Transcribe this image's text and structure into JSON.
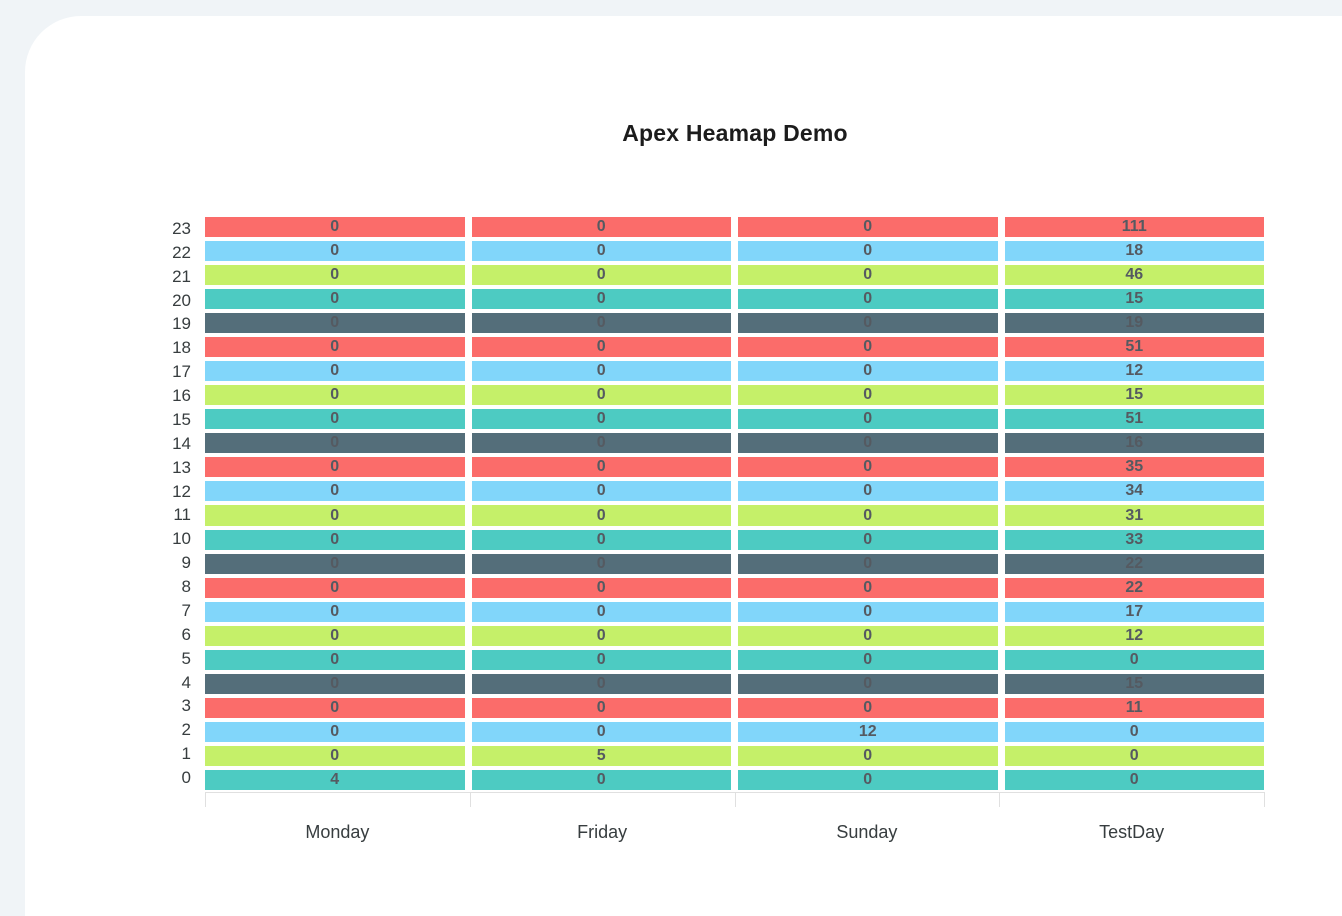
{
  "page": {
    "background_color": "#F0F4F7",
    "card_color": "#FFFFFF"
  },
  "chart_data": {
    "type": "heatmap",
    "title": "Apex Heamap Demo",
    "title_color": "#1C1C1C",
    "x_categories": [
      "Monday",
      "Friday",
      "Sunday",
      "TestDay"
    ],
    "y_categories_top_to_bottom": [
      "23",
      "22",
      "21",
      "20",
      "19",
      "18",
      "17",
      "16",
      "15",
      "14",
      "13",
      "12",
      "11",
      "10",
      "9",
      "8",
      "7",
      "6",
      "5",
      "4",
      "3",
      "2",
      "1",
      "0"
    ],
    "legend_position": "none",
    "grid": "off",
    "palette": {
      "red": "#FB6C6A",
      "blue": "#81D6FA",
      "lime": "#C5F069",
      "teal": "#4DCBC2",
      "slate": "#546E7A"
    },
    "row_color_cycle_top_to_bottom": [
      "red",
      "blue",
      "lime",
      "teal",
      "slate"
    ],
    "rows": [
      {
        "hour": "23",
        "color": "red",
        "values": [
          0,
          0,
          0,
          111
        ]
      },
      {
        "hour": "22",
        "color": "blue",
        "values": [
          0,
          0,
          0,
          18
        ]
      },
      {
        "hour": "21",
        "color": "lime",
        "values": [
          0,
          0,
          0,
          46
        ]
      },
      {
        "hour": "20",
        "color": "teal",
        "values": [
          0,
          0,
          0,
          15
        ]
      },
      {
        "hour": "19",
        "color": "slate",
        "values": [
          0,
          0,
          0,
          19
        ]
      },
      {
        "hour": "18",
        "color": "red",
        "values": [
          0,
          0,
          0,
          51
        ]
      },
      {
        "hour": "17",
        "color": "blue",
        "values": [
          0,
          0,
          0,
          12
        ]
      },
      {
        "hour": "16",
        "color": "lime",
        "values": [
          0,
          0,
          0,
          15
        ]
      },
      {
        "hour": "15",
        "color": "teal",
        "values": [
          0,
          0,
          0,
          51
        ]
      },
      {
        "hour": "14",
        "color": "slate",
        "values": [
          0,
          0,
          0,
          16
        ]
      },
      {
        "hour": "13",
        "color": "red",
        "values": [
          0,
          0,
          0,
          35
        ]
      },
      {
        "hour": "12",
        "color": "blue",
        "values": [
          0,
          0,
          0,
          34
        ]
      },
      {
        "hour": "11",
        "color": "lime",
        "values": [
          0,
          0,
          0,
          31
        ]
      },
      {
        "hour": "10",
        "color": "teal",
        "values": [
          0,
          0,
          0,
          33
        ]
      },
      {
        "hour": "9",
        "color": "slate",
        "values": [
          0,
          0,
          0,
          22
        ]
      },
      {
        "hour": "8",
        "color": "red",
        "values": [
          0,
          0,
          0,
          22
        ]
      },
      {
        "hour": "7",
        "color": "blue",
        "values": [
          0,
          0,
          0,
          17
        ]
      },
      {
        "hour": "6",
        "color": "lime",
        "values": [
          0,
          0,
          0,
          12
        ]
      },
      {
        "hour": "5",
        "color": "teal",
        "values": [
          0,
          0,
          0,
          0
        ]
      },
      {
        "hour": "4",
        "color": "slate",
        "values": [
          0,
          0,
          0,
          15
        ]
      },
      {
        "hour": "3",
        "color": "red",
        "values": [
          0,
          0,
          0,
          11
        ]
      },
      {
        "hour": "2",
        "color": "blue",
        "values": [
          0,
          0,
          12,
          0
        ]
      },
      {
        "hour": "1",
        "color": "lime",
        "values": [
          0,
          5,
          0,
          0
        ]
      },
      {
        "hour": "0",
        "color": "teal",
        "values": [
          4,
          0,
          0,
          0
        ]
      }
    ],
    "styles": {
      "value_label_color": "#555A61",
      "axis_label_color": "#373D3F",
      "axis_border_color": "#E0E0E0"
    }
  }
}
